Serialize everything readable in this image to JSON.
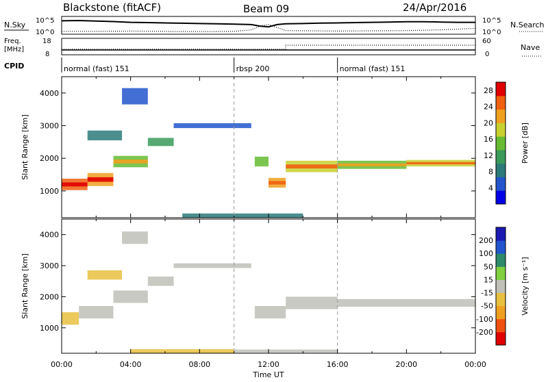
{
  "header": {
    "station": "Blackstone (fitACF)",
    "beam": "Beam 09",
    "date": "24/Apr/2016"
  },
  "top_panels": {
    "nsky_label": "N.Sky",
    "nsearch_label": "N.Search",
    "noise_ticks": [
      "10^5",
      "10^0"
    ],
    "freq_label_1": "Freq.",
    "freq_label_2": "[MHz]",
    "freq_ticks": [
      "18",
      "8"
    ],
    "nave_label": "Nave",
    "nave_ticks": [
      "60",
      "0"
    ],
    "cpid_label": "CPID",
    "cpid_segments": [
      {
        "name": "normal (fast) 151",
        "start_hour": 0,
        "end_hour": 10
      },
      {
        "name": "rbsp 200",
        "start_hour": 10,
        "end_hour": 16
      },
      {
        "name": "normal (fast) 151",
        "start_hour": 16,
        "end_hour": 24
      }
    ],
    "noise_sky": [
      [
        0,
        0.8
      ],
      [
        1,
        0.82
      ],
      [
        2,
        0.78
      ],
      [
        3,
        0.75
      ],
      [
        4,
        0.7
      ],
      [
        5,
        0.68
      ],
      [
        6,
        0.66
      ],
      [
        7,
        0.64
      ],
      [
        8,
        0.62
      ],
      [
        9,
        0.6
      ],
      [
        10,
        0.58
      ],
      [
        11,
        0.55
      ],
      [
        11.5,
        0.45
      ],
      [
        12,
        0.4
      ],
      [
        12.5,
        0.55
      ],
      [
        13,
        0.6
      ],
      [
        14,
        0.62
      ],
      [
        15,
        0.65
      ],
      [
        16,
        0.66
      ],
      [
        17,
        0.68
      ],
      [
        18,
        0.7
      ],
      [
        19,
        0.72
      ],
      [
        20,
        0.74
      ],
      [
        21,
        0.74
      ],
      [
        22,
        0.72
      ],
      [
        23,
        0.7
      ],
      [
        24,
        0.7
      ]
    ],
    "noise_search": [
      [
        0,
        0.1
      ],
      [
        2,
        0.1
      ],
      [
        4,
        0.12
      ],
      [
        6,
        0.1
      ],
      [
        8,
        0.08
      ],
      [
        10,
        0.1
      ],
      [
        11,
        0.2
      ],
      [
        11.5,
        0.45
      ],
      [
        12,
        0.55
      ],
      [
        12.5,
        0.35
      ],
      [
        13,
        0.15
      ],
      [
        16,
        0.12
      ],
      [
        20,
        0.15
      ],
      [
        22,
        0.2
      ],
      [
        24,
        0.3
      ]
    ],
    "freq_mhz": [
      [
        0,
        10.5
      ],
      [
        24,
        10.5
      ]
    ],
    "nave": [
      [
        0,
        18
      ],
      [
        13,
        18
      ],
      [
        13,
        36
      ],
      [
        24,
        36
      ]
    ]
  },
  "chart_data": [
    {
      "type": "heatmap",
      "title": "Power",
      "xlabel": "Time UT",
      "ylabel": "Slant Range [km]",
      "x_ticks": [
        "00:00",
        "04:00",
        "08:00",
        "12:00",
        "16:00",
        "20:00",
        "00:00"
      ],
      "xlim_hours": [
        0,
        24
      ],
      "y_ticks": [
        1000,
        2000,
        3000,
        4000
      ],
      "ylim": [
        180,
        4500
      ],
      "colorbar_label": "Power [dB]",
      "colorbar_ticks": [
        28,
        24,
        20,
        16,
        12,
        8,
        4
      ],
      "colorbar_range": [
        0,
        30
      ],
      "colors": [
        "#0000e6",
        "#2255cc",
        "#2d7a7a",
        "#3a9a5a",
        "#66bb33",
        "#c8d030",
        "#f0a020",
        "#f06010",
        "#e00000"
      ],
      "echo_bands": [
        {
          "t0": 0.0,
          "t1": 1.5,
          "r_center": 1200,
          "r_width": 350,
          "power": 26
        },
        {
          "t0": 1.5,
          "t1": 3.0,
          "r_center": 1350,
          "r_width": 400,
          "power": 22
        },
        {
          "t0": 3.0,
          "t1": 5.0,
          "r_center": 1900,
          "r_width": 350,
          "power": 16
        },
        {
          "t0": 5.0,
          "t1": 6.5,
          "r_center": 2500,
          "r_width": 250,
          "power": 12
        },
        {
          "t0": 1.5,
          "t1": 3.5,
          "r_center": 2700,
          "r_width": 300,
          "power": 8
        },
        {
          "t0": 3.5,
          "t1": 5.0,
          "r_center": 3900,
          "r_width": 500,
          "power": 6
        },
        {
          "t0": 6.5,
          "t1": 11.0,
          "r_center": 3000,
          "r_width": 150,
          "power": 6
        },
        {
          "t0": 11.2,
          "t1": 12.0,
          "r_center": 1900,
          "r_width": 300,
          "power": 14
        },
        {
          "t0": 12.0,
          "t1": 13.0,
          "r_center": 1250,
          "r_width": 300,
          "power": 20
        },
        {
          "t0": 13.0,
          "t1": 16.0,
          "r_center": 1750,
          "r_width": 350,
          "power": 18
        },
        {
          "t0": 16.0,
          "t1": 20.0,
          "r_center": 1800,
          "r_width": 250,
          "power": 16
        },
        {
          "t0": 20.0,
          "t1": 24.0,
          "r_center": 1850,
          "r_width": 200,
          "power": 18
        },
        {
          "t0": 7.0,
          "t1": 14.0,
          "r_center": 250,
          "r_width": 120,
          "power": 8
        }
      ]
    },
    {
      "type": "heatmap",
      "title": "Velocity",
      "xlabel": "Time UT",
      "ylabel": "Slant Range [km]",
      "x_ticks": [
        "00:00",
        "04:00",
        "08:00",
        "12:00",
        "16:00",
        "20:00",
        "00:00"
      ],
      "xlim_hours": [
        0,
        24
      ],
      "y_ticks": [
        1000,
        2000,
        3000,
        4000
      ],
      "ylim": [
        180,
        4500
      ],
      "colorbar_label": "Velocity [m s⁻¹]",
      "colorbar_ticks": [
        200,
        100,
        50,
        15,
        -15,
        -50,
        -100,
        -200
      ],
      "colorbar_range": [
        -250,
        250
      ],
      "colors": [
        "#e00000",
        "#f05010",
        "#f0a020",
        "#e8c040",
        "#c0c0b8",
        "#80d040",
        "#2d8a6a",
        "#2255cc",
        "#1a1ab0"
      ],
      "echo_bands": [
        {
          "t0": 0.0,
          "t1": 1.0,
          "r_center": 1300,
          "r_width": 400,
          "velocity": -30
        },
        {
          "t0": 1.0,
          "t1": 3.0,
          "r_center": 1500,
          "r_width": 400,
          "velocity": 0
        },
        {
          "t0": 3.0,
          "t1": 5.0,
          "r_center": 2000,
          "r_width": 400,
          "velocity": 0
        },
        {
          "t0": 5.0,
          "t1": 6.5,
          "r_center": 2500,
          "r_width": 300,
          "velocity": 0
        },
        {
          "t0": 1.5,
          "t1": 3.5,
          "r_center": 2700,
          "r_width": 300,
          "velocity": -40
        },
        {
          "t0": 3.5,
          "t1": 5.0,
          "r_center": 3900,
          "r_width": 400,
          "velocity": 0
        },
        {
          "t0": 6.5,
          "t1": 11.0,
          "r_center": 3000,
          "r_width": 150,
          "velocity": 0
        },
        {
          "t0": 11.2,
          "t1": 13.0,
          "r_center": 1500,
          "r_width": 400,
          "velocity": 0
        },
        {
          "t0": 13.0,
          "t1": 16.0,
          "r_center": 1800,
          "r_width": 400,
          "velocity": 0
        },
        {
          "t0": 16.0,
          "t1": 24.0,
          "r_center": 1800,
          "r_width": 250,
          "velocity": 0
        },
        {
          "t0": 4.0,
          "t1": 10.0,
          "r_center": 250,
          "r_width": 120,
          "velocity": -30
        },
        {
          "t0": 10.0,
          "t1": 16.0,
          "r_center": 250,
          "r_width": 100,
          "velocity": 20
        }
      ]
    }
  ]
}
